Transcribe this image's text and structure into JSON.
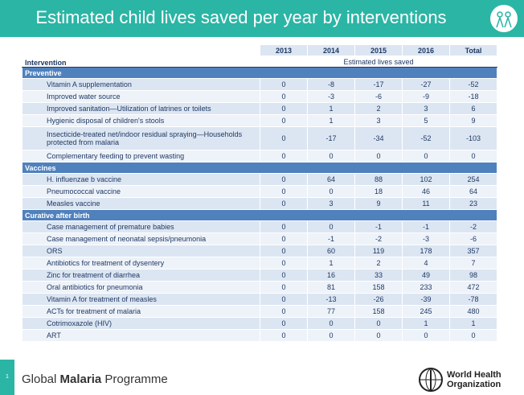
{
  "header": {
    "title": "Estimated child lives saved per year by interventions"
  },
  "table": {
    "column_header": "Intervention",
    "columns": [
      "2013",
      "2014",
      "2015",
      "2016",
      "Total"
    ],
    "subheader": "Estimated lives saved",
    "sections": [
      {
        "name": "Preventive",
        "rows": [
          {
            "label": "Vitamin A supplementation",
            "values": [
              0,
              -8,
              -17,
              -27,
              -52
            ]
          },
          {
            "label": "Improved water source",
            "values": [
              0,
              -3,
              -6,
              -9,
              -18
            ]
          },
          {
            "label": "Improved sanitation—Utilization of latrines or toilets",
            "values": [
              0,
              1,
              2,
              3,
              6
            ]
          },
          {
            "label": "Hygienic disposal of children's stools",
            "values": [
              0,
              1,
              3,
              5,
              9
            ]
          },
          {
            "label": "Insecticide-treated net/indoor residual spraying—Households protected from malaria",
            "values": [
              0,
              -17,
              -34,
              -52,
              -103
            ]
          },
          {
            "label": "Complementary feeding to prevent wasting",
            "values": [
              0,
              0,
              0,
              0,
              0
            ]
          }
        ]
      },
      {
        "name": "Vaccines",
        "rows": [
          {
            "label": "H. influenzae b vaccine",
            "values": [
              0,
              64,
              88,
              102,
              254
            ]
          },
          {
            "label": "Pneumococcal vaccine",
            "values": [
              0,
              0,
              18,
              46,
              64
            ]
          },
          {
            "label": "Measles vaccine",
            "values": [
              0,
              3,
              9,
              11,
              23
            ]
          }
        ]
      },
      {
        "name": "Curative after birth",
        "rows": [
          {
            "label": "Case management of premature babies",
            "values": [
              0,
              0,
              -1,
              -1,
              -2
            ]
          },
          {
            "label": "Case management of neonatal sepsis/pneumonia",
            "values": [
              0,
              -1,
              -2,
              -3,
              -6
            ]
          },
          {
            "label": "ORS",
            "values": [
              0,
              60,
              119,
              178,
              357
            ]
          },
          {
            "label": "Antibiotics for treatment of dysentery",
            "values": [
              0,
              1,
              2,
              4,
              7
            ]
          },
          {
            "label": "Zinc for treatment of diarrhea",
            "values": [
              0,
              16,
              33,
              49,
              98
            ]
          },
          {
            "label": "Oral antibiotics for pneumonia",
            "values": [
              0,
              81,
              158,
              233,
              472
            ]
          },
          {
            "label": "Vitamin A for treatment of measles",
            "values": [
              0,
              -13,
              -26,
              -39,
              -78
            ]
          },
          {
            "label": "ACTs for treatment of malaria",
            "values": [
              0,
              77,
              158,
              245,
              480
            ]
          },
          {
            "label": "Cotrimoxazole (HIV)",
            "values": [
              0,
              0,
              0,
              1,
              1
            ]
          },
          {
            "label": "ART",
            "values": [
              0,
              0,
              0,
              0,
              0
            ]
          }
        ]
      }
    ]
  },
  "footer": {
    "slide_number": "1",
    "programme": [
      "Global",
      "Malaria",
      "Programme"
    ],
    "organization": [
      "World Health",
      "Organization"
    ]
  }
}
